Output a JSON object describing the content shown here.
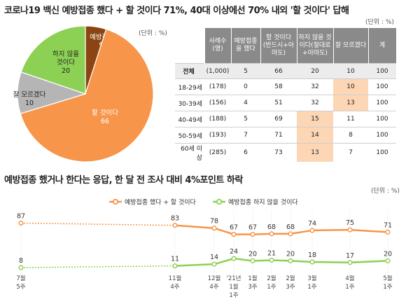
{
  "top_title": "코로나19 백신 예방접종 했다 + 할 것이다 71%, 40대 이상에선 70% 내외 '할 것이다' 답해",
  "pie_unit": "(단위 : %)",
  "table_unit": "(단위 : %)",
  "bottom_title": "예방접종 했거나 한다는 응답, 한 달 전 조사 대비 4%포인트 하락",
  "line_unit": "(단위 : %)",
  "colors": {
    "vaccinated": "#8b4513",
    "will": "#f7954a",
    "will_not": "#8cd153",
    "unsure": "#b5b5b5",
    "highlight": "#fcd6b5"
  },
  "chart_data": [
    {
      "type": "pie",
      "slices": [
        {
          "label": [
            "예방접종을",
            "했다"
          ],
          "value": 5,
          "color": "#8b4513"
        },
        {
          "label": [
            "할 것이다"
          ],
          "value": 66,
          "color": "#f7954a"
        },
        {
          "label": [
            "잘 모르겠다"
          ],
          "value": 10,
          "color": "#b5b5b5"
        },
        {
          "label": [
            "하지 않을",
            "것이다"
          ],
          "value": 20,
          "color": "#8cd153"
        }
      ]
    },
    {
      "type": "table",
      "columns": [
        "사례수 (명)",
        "예방접종을 했다",
        "할 것이다 (반드시+아마도)",
        "하지 않을 것이다(절대로+아마도)",
        "잘 모르겠다",
        "계"
      ],
      "rows": [
        {
          "label": "전체",
          "n": "(1,000)",
          "values": [
            "5",
            "66",
            "20",
            "10",
            "100"
          ]
        },
        {
          "label": "18-29세",
          "n": "(178)",
          "values": [
            "0",
            "58",
            "32",
            "10",
            "100"
          ]
        },
        {
          "label": "30-39세",
          "n": "(156)",
          "values": [
            "4",
            "51",
            "32",
            "13",
            "100"
          ]
        },
        {
          "label": "40-49세",
          "n": "(188)",
          "values": [
            "5",
            "69",
            "15",
            "11",
            "100"
          ]
        },
        {
          "label": "50-59세",
          "n": "(193)",
          "values": [
            "7",
            "71",
            "14",
            "8",
            "100"
          ]
        },
        {
          "label": "60세 이상",
          "n": "(285)",
          "values": [
            "6",
            "73",
            "13",
            "7",
            "100"
          ]
        }
      ],
      "highlights": [
        [
          1,
          3
        ],
        [
          2,
          3
        ],
        [
          3,
          2
        ],
        [
          4,
          2
        ],
        [
          5,
          2
        ]
      ]
    },
    {
      "type": "line",
      "x": [
        [
          "7월",
          "5주"
        ],
        [
          "11월",
          "4주"
        ],
        [
          "12월",
          "4주"
        ],
        [
          "'21년",
          "1월",
          "1주"
        ],
        [
          "1월",
          "3주"
        ],
        [
          "2월",
          "1주"
        ],
        [
          "2월",
          "3주"
        ],
        [
          "3월",
          "1주"
        ],
        [
          "4월",
          "1주"
        ],
        [
          "5월",
          "1주"
        ]
      ],
      "series": [
        {
          "name": "예방접종 했다 + 할 것이다",
          "color": "#f7954a",
          "values": [
            87,
            83,
            78,
            67,
            67,
            68,
            68,
            74,
            75,
            71
          ]
        },
        {
          "name": "예방접종 하지 않을 것이다",
          "color": "#8cd153",
          "values": [
            8,
            11,
            14,
            24,
            20,
            21,
            20,
            18,
            17,
            20
          ]
        }
      ]
    }
  ]
}
